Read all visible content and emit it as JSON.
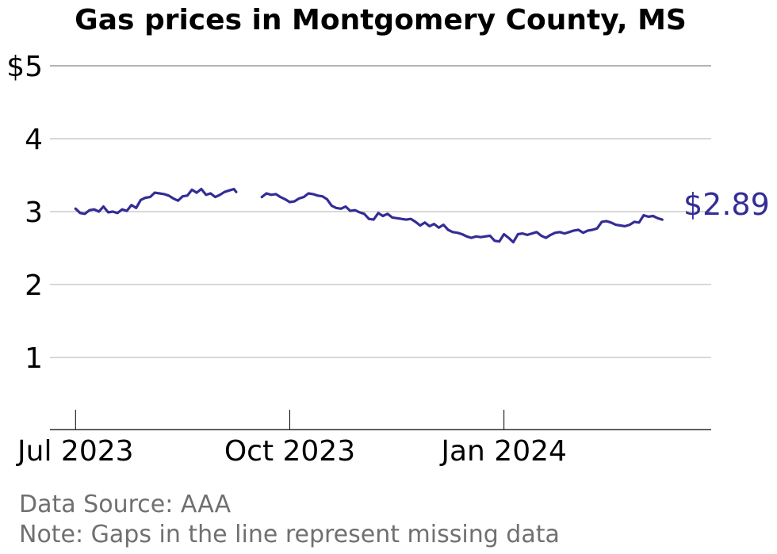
{
  "chart_data": {
    "type": "line",
    "title": "Gas prices in Montgomery County, MS",
    "xlabel": "",
    "ylabel": "",
    "ylim": [
      0,
      5
    ],
    "y_ticks": [
      {
        "value": 5,
        "label": "$5"
      },
      {
        "value": 4,
        "label": "4"
      },
      {
        "value": 3,
        "label": "3"
      },
      {
        "value": 2,
        "label": "2"
      },
      {
        "value": 1,
        "label": "1"
      }
    ],
    "x_ticks": [
      {
        "date": "2023-07-01",
        "label": "Jul 2023"
      },
      {
        "date": "2023-10-01",
        "label": "Oct 2023"
      },
      {
        "date": "2024-01-01",
        "label": "Jan 2024"
      }
    ],
    "xlim": [
      "2023-06-20",
      "2024-03-30"
    ],
    "line_color": "#332d96",
    "grid": true,
    "end_label": "$2.89",
    "series": [
      {
        "segments": [
          [
            [
              "2023-07-01",
              3.04
            ],
            [
              "2023-07-03",
              2.98
            ],
            [
              "2023-07-05",
              2.97
            ],
            [
              "2023-07-07",
              3.02
            ],
            [
              "2023-07-09",
              3.03
            ],
            [
              "2023-07-11",
              3.0
            ],
            [
              "2023-07-13",
              3.07
            ],
            [
              "2023-07-15",
              2.99
            ],
            [
              "2023-07-17",
              3.0
            ],
            [
              "2023-07-19",
              2.98
            ],
            [
              "2023-07-21",
              3.03
            ],
            [
              "2023-07-23",
              3.01
            ],
            [
              "2023-07-25",
              3.09
            ],
            [
              "2023-07-27",
              3.05
            ],
            [
              "2023-07-29",
              3.16
            ],
            [
              "2023-07-31",
              3.19
            ],
            [
              "2023-08-02",
              3.2
            ],
            [
              "2023-08-04",
              3.26
            ],
            [
              "2023-08-06",
              3.25
            ],
            [
              "2023-08-08",
              3.24
            ],
            [
              "2023-08-10",
              3.22
            ],
            [
              "2023-08-12",
              3.18
            ],
            [
              "2023-08-14",
              3.15
            ],
            [
              "2023-08-16",
              3.21
            ],
            [
              "2023-08-18",
              3.22
            ],
            [
              "2023-08-20",
              3.3
            ],
            [
              "2023-08-22",
              3.26
            ],
            [
              "2023-08-24",
              3.31
            ],
            [
              "2023-08-26",
              3.23
            ],
            [
              "2023-08-28",
              3.25
            ],
            [
              "2023-08-30",
              3.2
            ],
            [
              "2023-09-01",
              3.23
            ],
            [
              "2023-09-03",
              3.27
            ],
            [
              "2023-09-05",
              3.29
            ],
            [
              "2023-09-07",
              3.31
            ],
            [
              "2023-09-08",
              3.27
            ]
          ],
          [
            [
              "2023-09-19",
              3.2
            ],
            [
              "2023-09-21",
              3.25
            ],
            [
              "2023-09-23",
              3.23
            ],
            [
              "2023-09-25",
              3.24
            ],
            [
              "2023-09-27",
              3.2
            ],
            [
              "2023-09-29",
              3.17
            ],
            [
              "2023-10-01",
              3.13
            ],
            [
              "2023-10-03",
              3.14
            ],
            [
              "2023-10-05",
              3.18
            ],
            [
              "2023-10-07",
              3.2
            ],
            [
              "2023-10-09",
              3.25
            ],
            [
              "2023-10-11",
              3.24
            ],
            [
              "2023-10-13",
              3.22
            ],
            [
              "2023-10-15",
              3.21
            ],
            [
              "2023-10-17",
              3.17
            ],
            [
              "2023-10-19",
              3.08
            ],
            [
              "2023-10-21",
              3.05
            ],
            [
              "2023-10-23",
              3.04
            ],
            [
              "2023-10-25",
              3.07
            ],
            [
              "2023-10-27",
              3.01
            ],
            [
              "2023-10-29",
              3.02
            ],
            [
              "2023-10-31",
              2.99
            ],
            [
              "2023-11-02",
              2.97
            ],
            [
              "2023-11-04",
              2.9
            ],
            [
              "2023-11-06",
              2.89
            ],
            [
              "2023-11-08",
              2.98
            ],
            [
              "2023-11-10",
              2.94
            ],
            [
              "2023-11-12",
              2.97
            ],
            [
              "2023-11-14",
              2.92
            ],
            [
              "2023-11-16",
              2.91
            ],
            [
              "2023-11-18",
              2.9
            ],
            [
              "2023-11-20",
              2.89
            ],
            [
              "2023-11-22",
              2.9
            ],
            [
              "2023-11-24",
              2.86
            ],
            [
              "2023-11-26",
              2.81
            ],
            [
              "2023-11-28",
              2.85
            ],
            [
              "2023-11-30",
              2.8
            ],
            [
              "2023-12-02",
              2.83
            ],
            [
              "2023-12-04",
              2.78
            ],
            [
              "2023-12-06",
              2.82
            ],
            [
              "2023-12-08",
              2.75
            ],
            [
              "2023-12-10",
              2.72
            ],
            [
              "2023-12-12",
              2.71
            ],
            [
              "2023-12-14",
              2.69
            ],
            [
              "2023-12-16",
              2.66
            ],
            [
              "2023-12-18",
              2.64
            ],
            [
              "2023-12-20",
              2.66
            ],
            [
              "2023-12-22",
              2.65
            ],
            [
              "2023-12-24",
              2.66
            ],
            [
              "2023-12-26",
              2.67
            ],
            [
              "2023-12-28",
              2.6
            ],
            [
              "2023-12-30",
              2.59
            ],
            [
              "2024-01-01",
              2.69
            ],
            [
              "2024-01-03",
              2.64
            ],
            [
              "2024-01-05",
              2.58
            ],
            [
              "2024-01-07",
              2.69
            ],
            [
              "2024-01-09",
              2.7
            ],
            [
              "2024-01-11",
              2.68
            ],
            [
              "2024-01-13",
              2.7
            ],
            [
              "2024-01-15",
              2.72
            ],
            [
              "2024-01-17",
              2.67
            ],
            [
              "2024-01-19",
              2.64
            ],
            [
              "2024-01-21",
              2.68
            ],
            [
              "2024-01-23",
              2.71
            ],
            [
              "2024-01-25",
              2.72
            ],
            [
              "2024-01-27",
              2.7
            ],
            [
              "2024-01-29",
              2.72
            ],
            [
              "2024-01-31",
              2.74
            ],
            [
              "2024-02-02",
              2.75
            ],
            [
              "2024-02-04",
              2.71
            ],
            [
              "2024-02-06",
              2.74
            ],
            [
              "2024-02-08",
              2.75
            ],
            [
              "2024-02-10",
              2.77
            ],
            [
              "2024-02-12",
              2.86
            ],
            [
              "2024-02-14",
              2.87
            ],
            [
              "2024-02-16",
              2.85
            ],
            [
              "2024-02-18",
              2.82
            ],
            [
              "2024-02-20",
              2.81
            ],
            [
              "2024-02-22",
              2.8
            ],
            [
              "2024-02-24",
              2.82
            ],
            [
              "2024-02-26",
              2.86
            ],
            [
              "2024-02-28",
              2.85
            ],
            [
              "2024-03-01",
              2.95
            ],
            [
              "2024-03-03",
              2.93
            ],
            [
              "2024-03-05",
              2.94
            ],
            [
              "2024-03-07",
              2.91
            ],
            [
              "2024-03-09",
              2.89
            ]
          ]
        ]
      }
    ]
  },
  "footer": {
    "source": "Data Source: AAA",
    "note": "Note: Gaps in the line represent missing data"
  }
}
